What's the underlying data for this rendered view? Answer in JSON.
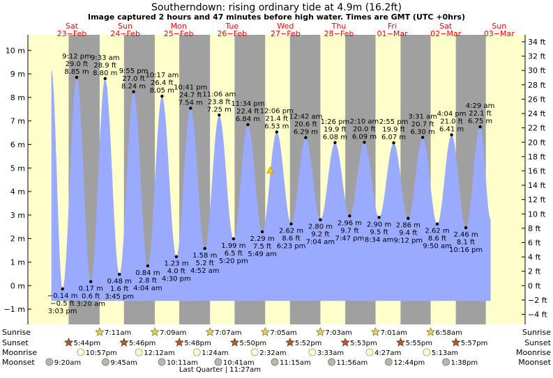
{
  "title": "Southerndown: rising  ordinary tide at 4.9m (16.2ft)",
  "subtitle": "Image captured 2 hours and 47 minutes before high water. Times are GMT (UTC +0hrs)",
  "colors": {
    "day": "#ffffcc",
    "night": "#a0a0a0",
    "tide": "#99aaff",
    "day_label": "#ff0000",
    "marker": "#ffcc00"
  },
  "chart_data": {
    "type": "area",
    "xlabel": "",
    "ylabel": "",
    "ylim": [
      -1.5,
      10.8
    ],
    "grid": false,
    "y_ticks_m": [
      -1,
      0,
      1,
      2,
      3,
      4,
      5,
      6,
      7,
      8,
      9,
      10
    ],
    "y_tick_labels_m": [
      "−1 m",
      "0 m",
      "1 m",
      "2 m",
      "3 m",
      "4 m",
      "5 m",
      "6 m",
      "7 m",
      "8 m",
      "9 m",
      "10 m"
    ],
    "y_ticks_ft": [
      -4,
      -2,
      0,
      2,
      4,
      6,
      8,
      10,
      12,
      14,
      16,
      18,
      20,
      22,
      24,
      26,
      28,
      30,
      32,
      34
    ],
    "y_tick_labels_ft": [
      "−4 ft",
      "−2 ft",
      "0 ft",
      "2 ft",
      "4 ft",
      "6 ft",
      "8 ft",
      "10 ft",
      "12 ft",
      "14 ft",
      "16 ft",
      "18 ft",
      "20 ft",
      "22 ft",
      "24 ft",
      "26 ft",
      "28 ft",
      "30 ft",
      "32 ft",
      "34 ft"
    ],
    "days": [
      {
        "label": "Sat",
        "date": "23−Feb"
      },
      {
        "label": "Sun",
        "date": "24−Feb"
      },
      {
        "label": "Mon",
        "date": "25−Feb"
      },
      {
        "label": "Tue",
        "date": "26−Feb"
      },
      {
        "label": "Wed",
        "date": "27−Feb"
      },
      {
        "label": "Thu",
        "date": "28−Feb"
      },
      {
        "label": "Fri",
        "date": "01−Mar"
      },
      {
        "label": "Sat",
        "date": "02−Mar"
      },
      {
        "label": "Sun",
        "date": "03−Mar"
      }
    ],
    "series": [
      {
        "tides": [
          {
            "type": "low",
            "time": "3:03 pm",
            "ft": "−0.5 ft",
            "m": "−0.14 m",
            "value": -0.14,
            "t": "2019-02-23 15:03"
          },
          {
            "type": "high",
            "time": "9:12 pm",
            "ft": "29.0 ft",
            "m": "8.85 m",
            "value": 8.85,
            "t": "2019-02-23 21:12"
          },
          {
            "type": "low",
            "time": "3:20 am",
            "ft": "0.6 ft",
            "m": "0.17 m",
            "value": 0.17,
            "t": "2019-02-24 03:20"
          },
          {
            "type": "high",
            "time": "9:33 am",
            "ft": "28.9 ft",
            "m": "8.80 m",
            "value": 8.8,
            "t": "2019-02-24 09:33"
          },
          {
            "type": "low",
            "time": "3:45 pm",
            "ft": "1.6 ft",
            "m": "0.48 m",
            "value": 0.48,
            "t": "2019-02-24 15:45"
          },
          {
            "type": "high",
            "time": "9:55 pm",
            "ft": "27.0 ft",
            "m": "8.24 m",
            "value": 8.24,
            "t": "2019-02-24 21:55"
          },
          {
            "type": "low",
            "time": "4:04 am",
            "ft": "2.8 ft",
            "m": "0.84 m",
            "value": 0.84,
            "t": "2019-02-25 04:04"
          },
          {
            "type": "high",
            "time": "10:17 am",
            "ft": "26.4 ft",
            "m": "8.05 m",
            "value": 8.05,
            "t": "2019-02-25 10:17"
          },
          {
            "type": "low",
            "time": "4:30 pm",
            "ft": "4.0 ft",
            "m": "1.23 m",
            "value": 1.23,
            "t": "2019-02-25 16:30"
          },
          {
            "type": "high",
            "time": "10:41 pm",
            "ft": "24.7 ft",
            "m": "7.54 m",
            "value": 7.54,
            "t": "2019-02-25 22:41"
          },
          {
            "type": "low",
            "time": "4:52 am",
            "ft": "5.2 ft",
            "m": "1.58 m",
            "value": 1.58,
            "t": "2019-02-26 04:52"
          },
          {
            "type": "high",
            "time": "11:06 am",
            "ft": "23.8 ft",
            "m": "7.25 m",
            "value": 7.25,
            "t": "2019-02-26 11:06"
          },
          {
            "type": "low",
            "time": "5:20 pm",
            "ft": "6.5 ft",
            "m": "1.99 m",
            "value": 1.99,
            "t": "2019-02-26 17:20"
          },
          {
            "type": "high",
            "time": "11:34 pm",
            "ft": "22.4 ft",
            "m": "6.84 m",
            "value": 6.84,
            "t": "2019-02-26 23:34"
          },
          {
            "type": "low",
            "time": "5:49 am",
            "ft": "7.5 ft",
            "m": "2.29 m",
            "value": 2.29,
            "t": "2019-02-27 05:49"
          },
          {
            "type": "high",
            "time": "12:06 pm",
            "ft": "21.4 ft",
            "m": "6.53 m",
            "value": 6.53,
            "t": "2019-02-27 12:06"
          },
          {
            "type": "low",
            "time": "6:23 pm",
            "ft": "8.6 ft",
            "m": "2.62 m",
            "value": 2.62,
            "t": "2019-02-27 18:23"
          },
          {
            "type": "high",
            "time": "12:42 am",
            "ft": "20.6 ft",
            "m": "6.29 m",
            "value": 6.29,
            "t": "2019-02-28 00:42"
          },
          {
            "type": "low",
            "time": "7:04 am",
            "ft": "9.2 ft",
            "m": "2.80 m",
            "value": 2.8,
            "t": "2019-02-28 07:04"
          },
          {
            "type": "high",
            "time": "1:26 pm",
            "ft": "19.9 ft",
            "m": "6.08 m",
            "value": 6.08,
            "t": "2019-02-28 13:26"
          },
          {
            "type": "low",
            "time": "7:47 pm",
            "ft": "9.7 ft",
            "m": "2.96 m",
            "value": 2.96,
            "t": "2019-02-28 19:47"
          },
          {
            "type": "high",
            "time": "2:10 am",
            "ft": "20.0 ft",
            "m": "6.09 m",
            "value": 6.09,
            "t": "2019-03-01 02:10"
          },
          {
            "type": "low",
            "time": "8:34 am",
            "ft": "9.5 ft",
            "m": "2.90 m",
            "value": 2.9,
            "t": "2019-03-01 08:34"
          },
          {
            "type": "high",
            "time": "2:55 pm",
            "ft": "19.9 ft",
            "m": "6.07 m",
            "value": 6.07,
            "t": "2019-03-01 14:55"
          },
          {
            "type": "low",
            "time": "9:12 pm",
            "ft": "9.4 ft",
            "m": "2.86 m",
            "value": 2.86,
            "t": "2019-03-01 21:12"
          },
          {
            "type": "high",
            "time": "3:31 am",
            "ft": "20.7 ft",
            "m": "6.30 m",
            "value": 6.3,
            "t": "2019-03-02 03:31"
          },
          {
            "type": "low",
            "time": "9:50 am",
            "ft": "8.6 ft",
            "m": "2.62 m",
            "value": 2.62,
            "t": "2019-03-02 09:50"
          },
          {
            "type": "high",
            "time": "4:04 pm",
            "ft": "21.0 ft",
            "m": "6.41 m",
            "value": 6.41,
            "t": "2019-03-02 16:04"
          },
          {
            "type": "low",
            "time": "10:16 pm",
            "ft": "8.1 ft",
            "m": "2.46 m",
            "value": 2.46,
            "t": "2019-03-02 22:16"
          },
          {
            "type": "high",
            "time": "4:29 am",
            "ft": "22.1 ft",
            "m": "6.75 m",
            "value": 6.75,
            "t": "2019-03-03 04:29"
          }
        ]
      }
    ],
    "current": {
      "value": 4.9,
      "t": "2019-02-27 09:19"
    },
    "daylight": [
      {
        "night_end": "2019-02-23 07:13",
        "night_start": "2019-02-23 17:42"
      },
      {
        "night_end": "2019-02-24 07:11",
        "night_start": "2019-02-24 17:44"
      },
      {
        "night_end": "2019-02-25 07:09",
        "night_start": "2019-02-25 17:46"
      },
      {
        "night_end": "2019-02-26 07:07",
        "night_start": "2019-02-26 17:48"
      },
      {
        "night_end": "2019-02-27 07:05",
        "night_start": "2019-02-27 17:50"
      },
      {
        "night_end": "2019-02-28 07:03",
        "night_start": "2019-02-28 17:52"
      },
      {
        "night_end": "2019-03-01 07:01",
        "night_start": "2019-03-01 17:53"
      },
      {
        "night_end": "2019-03-02 06:58",
        "night_start": "2019-03-02 17:55"
      },
      {
        "night_end": "2019-03-03 06:56",
        "night_start": "2019-03-03 17:57"
      }
    ],
    "astro": {
      "row_labels": {
        "sunrise": "Sunrise",
        "sunset": "Sunset",
        "moonrise": "Moonrise",
        "moonset": "Moonset"
      },
      "sunrise": [
        {
          "time": "7:11am",
          "t": "2019-02-24 07:11"
        },
        {
          "time": "7:09am",
          "t": "2019-02-25 07:09"
        },
        {
          "time": "7:07am",
          "t": "2019-02-26 07:07"
        },
        {
          "time": "7:05am",
          "t": "2019-02-27 07:05"
        },
        {
          "time": "7:03am",
          "t": "2019-02-28 07:03"
        },
        {
          "time": "7:01am",
          "t": "2019-03-01 07:01"
        },
        {
          "time": "6:58am",
          "t": "2019-03-02 06:58"
        }
      ],
      "sunset": [
        {
          "time": "5:44pm",
          "t": "2019-02-23 17:44"
        },
        {
          "time": "5:46pm",
          "t": "2019-02-24 17:46"
        },
        {
          "time": "5:48pm",
          "t": "2019-02-25 17:48"
        },
        {
          "time": "5:50pm",
          "t": "2019-02-26 17:50"
        },
        {
          "time": "5:52pm",
          "t": "2019-02-27 17:52"
        },
        {
          "time": "5:53pm",
          "t": "2019-02-28 17:53"
        },
        {
          "time": "5:55pm",
          "t": "2019-03-01 17:55"
        },
        {
          "time": "5:57pm",
          "t": "2019-03-02 17:57"
        }
      ],
      "moonrise": [
        {
          "time": "10:57pm",
          "t": "2019-02-23 22:57"
        },
        {
          "time": "12:12am",
          "t": "2019-02-25 00:12"
        },
        {
          "time": "1:24am",
          "t": "2019-02-26 01:24"
        },
        {
          "time": "2:32am",
          "t": "2019-02-27 02:32"
        },
        {
          "time": "3:33am",
          "t": "2019-02-28 03:33"
        },
        {
          "time": "4:27am",
          "t": "2019-03-01 04:27"
        },
        {
          "time": "5:13am",
          "t": "2019-03-02 05:13"
        }
      ],
      "moonset": [
        {
          "time": "9:20am",
          "t": "2019-02-23 09:20"
        },
        {
          "time": "9:45am",
          "t": "2019-02-24 09:45"
        },
        {
          "time": "10:11am",
          "t": "2019-02-25 10:11"
        },
        {
          "time": "10:41am",
          "t": "2019-02-26 10:41"
        },
        {
          "time": "11:15am",
          "t": "2019-02-27 11:15"
        },
        {
          "time": "11:56am",
          "t": "2019-02-28 11:56"
        },
        {
          "time": "12:44pm",
          "t": "2019-03-01 12:44"
        },
        {
          "time": "1:38pm",
          "t": "2019-03-02 13:38"
        }
      ],
      "moon_phase": {
        "text": "Last Quarter | 11:27am",
        "t": "2019-02-26 11:27"
      }
    }
  }
}
